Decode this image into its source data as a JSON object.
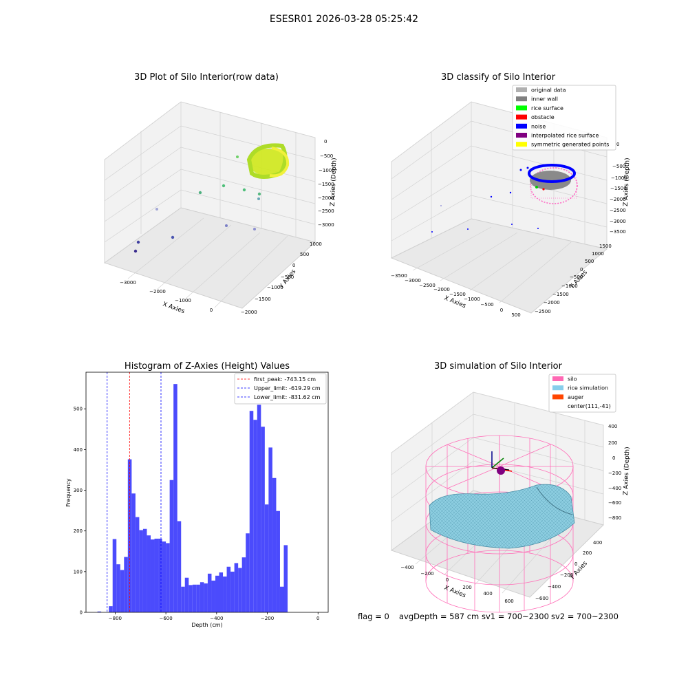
{
  "suptitle": "ESESR01 2026-03-28 05:25:42",
  "footer": {
    "flag": "flag = 0",
    "avg": "avgDepth = 587 cm",
    "sv1": "sv1 = 700~2300",
    "sv2": "sv2 = 700~2300"
  },
  "chart_data": [
    {
      "type": "scatter",
      "title": "3D Plot of Silo Interior(row data)",
      "xlabel": "X Axies",
      "ylabel": "Y Axies",
      "zlabel": "Z Axies (Depth)",
      "xticks": [
        "−3000",
        "−2000",
        "−1000",
        "0"
      ],
      "yticks": [
        "1000",
        "500",
        "0",
        "−500",
        "−1000",
        "−1500",
        "−2000"
      ],
      "zticks": [
        "0",
        "−500",
        "−1000",
        "−1500",
        "−2000",
        "−2500",
        "−3000"
      ]
    },
    {
      "type": "scatter",
      "title": "3D classify of Silo Interior",
      "xlabel": "X Axies",
      "ylabel": "Y Axies",
      "zlabel": "Z Axies (Depth)",
      "xticks": [
        "−3500",
        "−3000",
        "−2500",
        "−2000",
        "−1500",
        "−1000",
        "−500",
        "0",
        "500"
      ],
      "yticks": [
        "1500",
        "1000",
        "500",
        "0",
        "−500",
        "−1000",
        "−1500",
        "−2000",
        "−2500"
      ],
      "zticks": [
        "0",
        "−500",
        "−1000",
        "−1500",
        "−2000",
        "−2500",
        "−3000",
        "−3500"
      ],
      "legend": [
        {
          "label": "original data",
          "color": "#b0b0b0"
        },
        {
          "label": "inner wall",
          "color": "#808080"
        },
        {
          "label": "rice surface",
          "color": "#00ff00"
        },
        {
          "label": "obstacle",
          "color": "#ff0000"
        },
        {
          "label": "noise",
          "color": "#0000ff"
        },
        {
          "label": "interpolated rice surface",
          "color": "#800080"
        },
        {
          "label": "symmetric generated points",
          "color": "#ffff00"
        }
      ]
    },
    {
      "type": "bar",
      "title": "Histogram of Z-Axies (Height) Values",
      "xlabel": "Depth (cm)",
      "ylabel": "Frequency",
      "xlim": [
        -915,
        40
      ],
      "ylim": [
        0,
        590
      ],
      "xticks": [
        -800,
        -600,
        -400,
        -200,
        0
      ],
      "yticks": [
        0,
        100,
        200,
        300,
        400,
        500
      ],
      "bin_width": 15,
      "bin_start": [
        -900,
        -885,
        -870,
        -855,
        -840,
        -825,
        -810,
        -795,
        -780,
        -765,
        -750,
        -735,
        -720,
        -705,
        -690,
        -675,
        -660,
        -645,
        -630,
        -615,
        -600,
        -585,
        -570,
        -555,
        -540,
        -525,
        -510,
        -495,
        -480,
        -465,
        -450,
        -435,
        -420,
        -405,
        -390,
        -375,
        -360,
        -345,
        -330,
        -315,
        -300,
        -285,
        -270,
        -255,
        -240,
        -225,
        -210,
        -195,
        -180,
        -165,
        -150,
        -135,
        -120,
        -105,
        -90,
        -75,
        -60,
        -45,
        -30,
        -15
      ],
      "values": [
        0,
        0,
        2,
        0,
        0,
        15,
        180,
        118,
        104,
        136,
        376,
        292,
        234,
        202,
        205,
        189,
        179,
        181,
        181,
        174,
        170,
        325,
        561,
        224,
        63,
        85,
        67,
        68,
        68,
        74,
        71,
        95,
        78,
        90,
        98,
        88,
        112,
        100,
        121,
        109,
        135,
        194,
        495,
        473,
        510,
        456,
        265,
        405,
        330,
        249,
        63,
        165,
        0,
        0,
        0,
        0,
        0,
        0,
        0,
        0
      ],
      "vlines": [
        {
          "label": "first_peak: -743.15 cm",
          "x": -743.15,
          "color": "#ff0000"
        },
        {
          "label": "Upper_limit: -619.29 cm",
          "x": -619.29,
          "color": "#0000ff"
        },
        {
          "label": "Lower_limit: -831.62 cm",
          "x": -831.62,
          "color": "#0000ff"
        }
      ],
      "bar_color": "#4b4bfc"
    },
    {
      "type": "surface",
      "title": "3D simulation of Silo Interior",
      "xlabel": "X Axies",
      "ylabel": "Y Axies",
      "zlabel": "Z Axies (Depth)",
      "xticks": [
        "−400",
        "−200",
        "0",
        "200",
        "400",
        "600"
      ],
      "yticks": [
        "400",
        "200",
        "0",
        "−200",
        "−400",
        "−600"
      ],
      "zticks": [
        "400",
        "200",
        "0",
        "−200",
        "−400",
        "−600",
        "−800"
      ],
      "legend": [
        {
          "label": "silo",
          "color": "#ff69b4"
        },
        {
          "label": "rice simulation",
          "color": "#87ceeb"
        },
        {
          "label": "auger",
          "color": "#ff4500"
        },
        {
          "label": "center(111,-41)",
          "color": "none"
        }
      ]
    }
  ]
}
